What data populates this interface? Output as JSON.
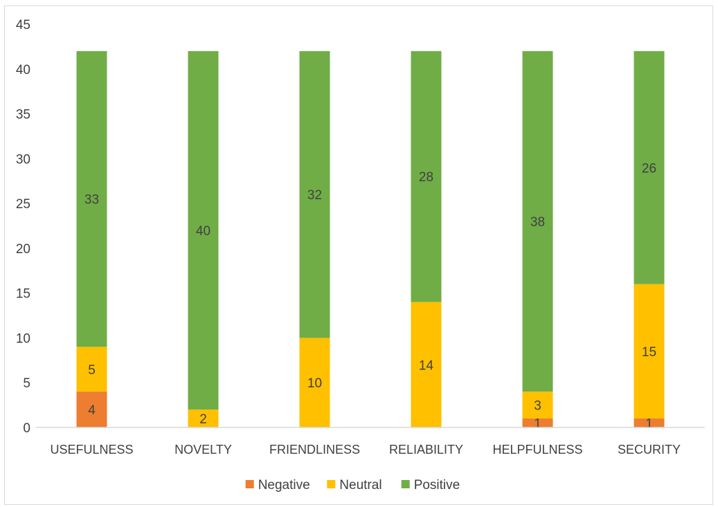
{
  "chart_data": {
    "type": "bar",
    "stacked": true,
    "categories": [
      "USEFULNESS",
      "NOVELTY",
      "FRIENDLINESS",
      "RELIABILITY",
      "HELPFULNESS",
      "SECURITY"
    ],
    "series": [
      {
        "name": "Negative",
        "color": "#ed7d31",
        "values": [
          4,
          0,
          0,
          0,
          1,
          1
        ],
        "labels": [
          "4",
          "",
          "",
          "",
          "1",
          "1"
        ]
      },
      {
        "name": "Neutral",
        "color": "#ffc000",
        "values": [
          5,
          2,
          10,
          14,
          3,
          15
        ],
        "labels": [
          "5",
          "2",
          "10",
          "14",
          "3",
          "15"
        ]
      },
      {
        "name": "Positive",
        "color": "#70ad47",
        "values": [
          33,
          40,
          32,
          28,
          38,
          26
        ],
        "labels": [
          "33",
          "40",
          "32",
          "28",
          "38",
          "26"
        ]
      }
    ],
    "title": "",
    "xlabel": "",
    "ylabel": "",
    "ylim": [
      0,
      45
    ],
    "yticks": [
      "0",
      "5",
      "10",
      "15",
      "20",
      "25",
      "30",
      "35",
      "40",
      "45"
    ],
    "grid": false,
    "legend": "bottom-center"
  }
}
